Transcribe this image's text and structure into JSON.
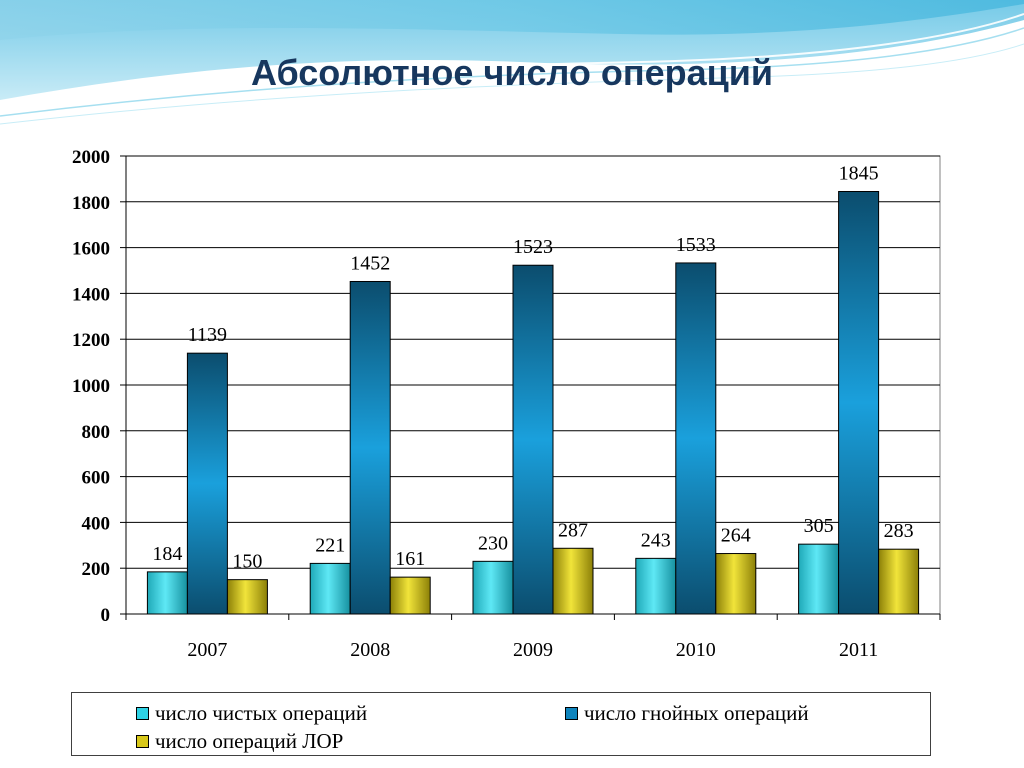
{
  "title": "Абсолютное число операций",
  "colors": {
    "title": "#17375e",
    "series": [
      "#2ed3e6",
      "#0e84bd",
      "#d8c81a"
    ]
  },
  "chart_data": {
    "type": "bar",
    "categories": [
      "2007",
      "2008",
      "2009",
      "2010",
      "2011"
    ],
    "series": [
      {
        "name": "число чистых операций",
        "values": [
          184,
          221,
          230,
          243,
          305
        ]
      },
      {
        "name": "число гнойных операций",
        "values": [
          1139,
          1452,
          1523,
          1533,
          1845
        ]
      },
      {
        "name": "число операций ЛОР",
        "values": [
          150,
          161,
          287,
          264,
          283
        ]
      }
    ],
    "ylim": [
      0,
      2000
    ],
    "yticks": [
      0,
      200,
      400,
      600,
      800,
      1000,
      1200,
      1400,
      1600,
      1800,
      2000
    ],
    "grid": true,
    "legend_position": "bottom",
    "data_labels": true
  }
}
